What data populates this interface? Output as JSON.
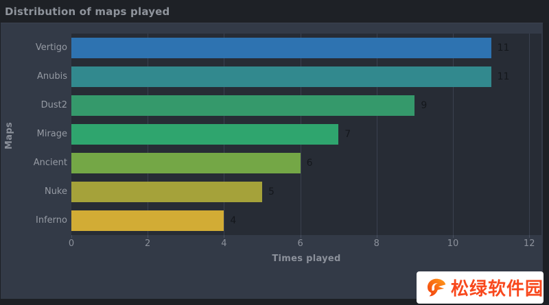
{
  "window": {
    "title": "Distribution of maps played"
  },
  "chart_data": {
    "type": "bar",
    "orientation": "horizontal",
    "title": "Distribution of maps played",
    "categories": [
      "Vertigo",
      "Anubis",
      "Dust2",
      "Mirage",
      "Ancient",
      "Nuke",
      "Inferno"
    ],
    "values": [
      11,
      11,
      9,
      7,
      6,
      5,
      4
    ],
    "bar_colors": [
      "#2e73b1",
      "#32898e",
      "#35996b",
      "#2fa56e",
      "#74a746",
      "#a5a23a",
      "#d2ac35"
    ],
    "value_labels": [
      11,
      11,
      9,
      7,
      6,
      5,
      4
    ],
    "xlabel": "Times played",
    "ylabel": "Maps",
    "xticks": [
      0,
      2,
      4,
      6,
      8,
      10,
      12
    ],
    "xlim": [
      0,
      12.32
    ],
    "grid": "vertical-gridlines-on",
    "legend": "none"
  },
  "colors": {
    "window_bg": "#1d2025",
    "titlebar_bg": "#1e2126",
    "figure_bg": "#333a47",
    "plot_bg": "#272c35",
    "grid_line": "#3a4150",
    "title_text": "#8f949c",
    "axis_text": "#8c919b",
    "category_text": "#969ba4",
    "value_text": "#14171c",
    "watermark_bg": "#ffffff",
    "watermark_text_color": "#f8481d",
    "logo_gradient_start": "#f23b0f",
    "logo_gradient_end": "#ff9c1a"
  },
  "watermark": {
    "text": "松绿软件园"
  }
}
